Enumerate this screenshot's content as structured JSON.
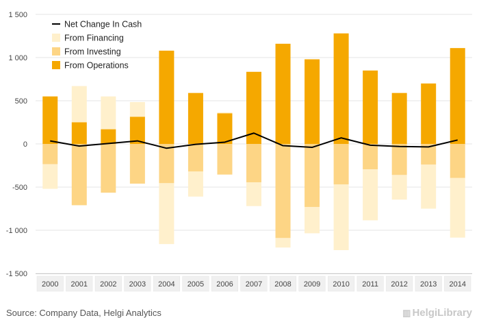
{
  "chart_data": {
    "type": "bar",
    "categories": [
      "2000",
      "2001",
      "2002",
      "2003",
      "2004",
      "2005",
      "2006",
      "2007",
      "2008",
      "2009",
      "2010",
      "2011",
      "2012",
      "2013",
      "2014"
    ],
    "series": [
      {
        "name": "From Operations",
        "kind": "bar",
        "color": "#f5a800",
        "values": [
          550,
          250,
          170,
          315,
          1080,
          590,
          355,
          835,
          1160,
          980,
          1280,
          850,
          590,
          700,
          1110
        ]
      },
      {
        "name": "From Investing",
        "kind": "bar",
        "color": "#fdd585",
        "values": [
          -235,
          -710,
          -565,
          -460,
          -455,
          -320,
          -355,
          -445,
          -1090,
          -730,
          -470,
          -295,
          -360,
          -240,
          -395
        ]
      },
      {
        "name": "From Financing",
        "kind": "bar",
        "color": "#fff0cc",
        "values": [
          -285,
          420,
          380,
          170,
          -705,
          -290,
          10,
          -275,
          -110,
          -305,
          -760,
          -590,
          -285,
          -510,
          -690
        ]
      },
      {
        "name": "Net Change In Cash",
        "kind": "line",
        "color": "#000000",
        "values": [
          35,
          -25,
          5,
          35,
          -50,
          -5,
          20,
          125,
          -20,
          -40,
          70,
          -15,
          -30,
          -35,
          45
        ]
      }
    ],
    "legend": [
      {
        "label": "Net Change In Cash",
        "color": "#000000",
        "shape": "line"
      },
      {
        "label": "From Financing",
        "color": "#fff0cc",
        "shape": "square"
      },
      {
        "label": "From Investing",
        "color": "#fdd585",
        "shape": "square"
      },
      {
        "label": "From Operations",
        "color": "#f5a800",
        "shape": "square"
      }
    ],
    "legend_position": "top-left",
    "ylim": [
      -1500,
      1500
    ],
    "yticks": [
      1500,
      1000,
      500,
      0,
      -500,
      -1000,
      -1500
    ],
    "ytick_labels": [
      "1 500",
      "1 000",
      "500",
      "0",
      "-500",
      "-1 000",
      "-1 500"
    ],
    "grid": true
  },
  "footer": {
    "source": "Source: Company Data, Helgi Analytics",
    "brand": "HelgiLibrary",
    "brand_icon": "helgi-library-logo-icon"
  }
}
